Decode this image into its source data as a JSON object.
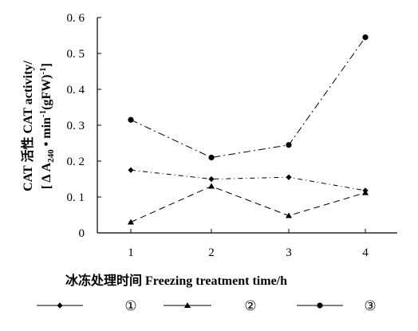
{
  "chart_data": {
    "type": "line",
    "xlabel": "冰冻处理时间  Freezing treatment time/h",
    "ylabel_line1": "CAT 活性  CAT activity/",
    "ylabel_line2_pre": "[ Δ A",
    "ylabel_line2_sub": "240",
    "ylabel_line2_mid": " • min",
    "ylabel_line2_sup1": "-1",
    "ylabel_line2_post": "(gFW)",
    "ylabel_line2_sup2": "-1",
    "ylabel_line2_end": "]",
    "x": [
      1,
      2,
      3,
      4
    ],
    "x_tick_labels": [
      "1",
      "2",
      "3",
      "4"
    ],
    "ylim": [
      0,
      0.6
    ],
    "y_ticks": [
      0,
      0.1,
      0.2,
      0.3,
      0.4,
      0.5,
      0.6
    ],
    "y_tick_labels": [
      "0",
      "0. 1",
      "0. 2",
      "0. 3",
      "0. 4",
      "0. 5",
      "0. 6"
    ],
    "grid": false,
    "legend_position": "bottom",
    "series": [
      {
        "name": "①",
        "marker": "diamond",
        "dash": "6,4,1,4",
        "values": [
          0.175,
          0.15,
          0.155,
          0.118
        ]
      },
      {
        "name": "②",
        "marker": "triangle",
        "dash": "8,5",
        "values": [
          0.03,
          0.13,
          0.048,
          0.112
        ]
      },
      {
        "name": "③",
        "marker": "circle",
        "dash": "9,4,2,4",
        "values": [
          0.315,
          0.21,
          0.245,
          0.545
        ]
      }
    ]
  }
}
